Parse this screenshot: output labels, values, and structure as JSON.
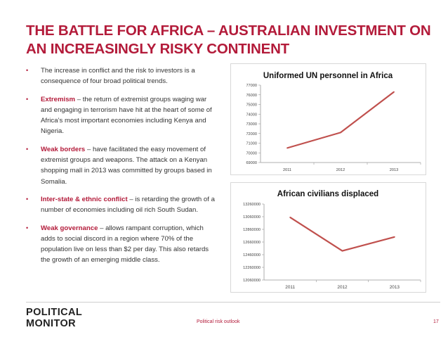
{
  "slide": {
    "title": "THE BATTLE FOR AFRICA – AUSTRALIAN INVESTMENT ON AN INCREASINGLY RISKY CONTINENT",
    "bullets": [
      {
        "keyword": "",
        "text": "The increase in conflict and the risk to investors is a consequence of four broad political trends."
      },
      {
        "keyword": "Extremism",
        "text": " – the return of extremist groups waging war and engaging in terrorism have hit at the heart of some of Africa’s most important economies including Kenya and Nigeria."
      },
      {
        "keyword": "Weak borders",
        "text": " – have facilitated the easy movement of extremist groups and weapons. The attack on a Kenyan shopping mall in 2013 was committed by groups based in Somalia."
      },
      {
        "keyword": "Inter-state & ethnic conflict",
        "text": " – is retarding the growth of a number of economies including oil rich South Sudan."
      },
      {
        "keyword": "Weak governance",
        "text": " – allows rampant corruption, which adds to social discord in a region where 70% of the population live on less than $2 per day. This also retards the growth of an emerging middle class."
      }
    ],
    "bullet_marker": "•"
  },
  "footer": {
    "logo_line1": "POLITICAL",
    "logo_line2": "MONITOR",
    "center_text": "Political risk outlook",
    "page_number": "17"
  },
  "colors": {
    "accent": "#b31b3a",
    "line": "#c0504d"
  },
  "chart_data": [
    {
      "type": "line",
      "title": "Uniformed UN personnel in Africa",
      "categories": [
        "2011",
        "2012",
        "2013"
      ],
      "values": [
        70500,
        72100,
        76300
      ],
      "y_ticks": [
        "69000",
        "70000",
        "71000",
        "72000",
        "73000",
        "74000",
        "75000",
        "76000",
        "77000"
      ],
      "ylim": [
        69000,
        77000
      ],
      "grid": false,
      "legend": "none"
    },
    {
      "type": "line",
      "title": "African civilians displaced",
      "categories": [
        "2011",
        "2012",
        "2013"
      ],
      "values": [
        13050000,
        12520000,
        12740000
      ],
      "y_ticks": [
        "12060000",
        "12260000",
        "12460000",
        "12660000",
        "12860000",
        "13060000",
        "13260000"
      ],
      "ylim": [
        12060000,
        13260000
      ],
      "grid": false,
      "legend": "none"
    }
  ]
}
